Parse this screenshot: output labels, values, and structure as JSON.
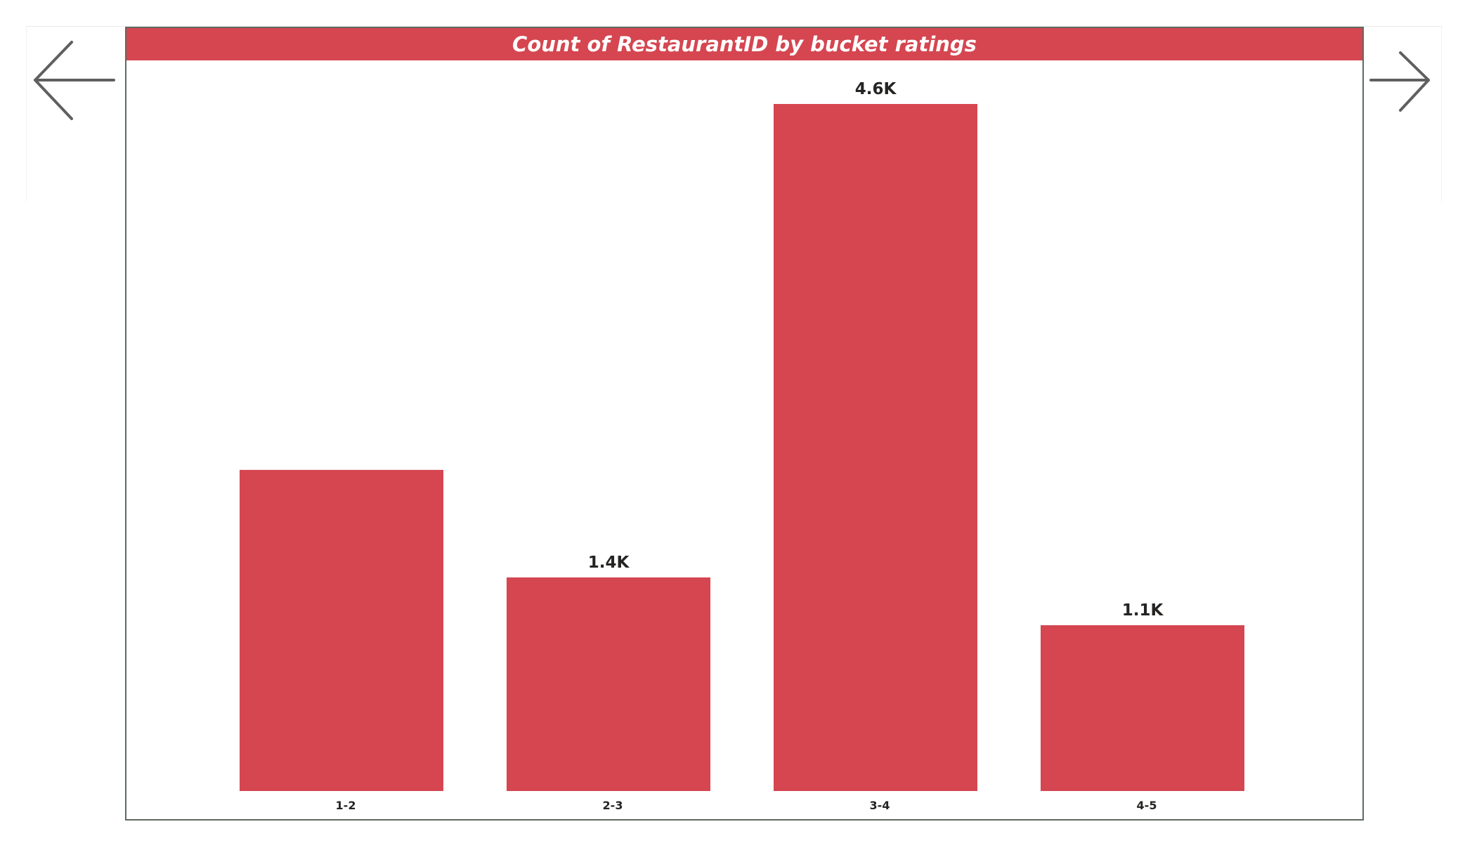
{
  "navigation": {
    "back_icon": "arrow-left-icon",
    "next_icon": "arrow-right-icon",
    "icon_color": "#5f5f5f"
  },
  "colors": {
    "accent": "#d54650",
    "border": "#5e6b60",
    "label_text": "#252423"
  },
  "chart_data": {
    "type": "bar",
    "title": "Count of RestaurantID by bucket ratings",
    "xlabel": "",
    "ylabel": "",
    "categories": [
      "1-2",
      "2-3",
      "3-4",
      "4-5"
    ],
    "values": [
      2150,
      1430,
      4600,
      1110
    ],
    "data_labels": [
      "",
      "1.4K",
      "4.6K",
      "1.1K"
    ],
    "ylim": [
      0,
      4600
    ],
    "grid": false,
    "legend": "none"
  }
}
